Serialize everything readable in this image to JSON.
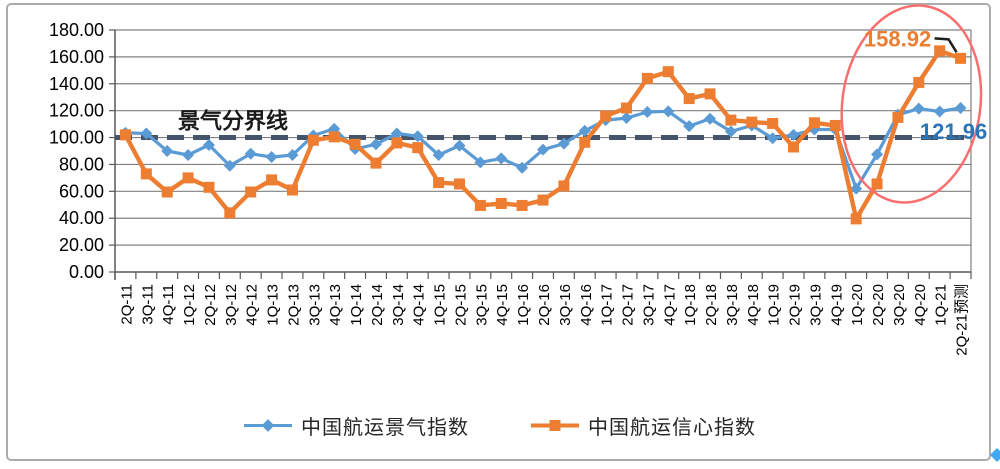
{
  "chart_data": {
    "type": "line",
    "title": "",
    "categories": [
      "2Q-11",
      "3Q-11",
      "4Q-11",
      "1Q-12",
      "2Q-12",
      "3Q-12",
      "4Q-12",
      "1Q-13",
      "2Q-13",
      "3Q-13",
      "4Q-13",
      "1Q-14",
      "2Q-14",
      "3Q-14",
      "4Q-14",
      "1Q-15",
      "2Q-15",
      "3Q-15",
      "4Q-15",
      "1Q-16",
      "2Q-16",
      "3Q-16",
      "4Q-16",
      "1Q-17",
      "2Q-17",
      "3Q-17",
      "4Q-17",
      "1Q-18",
      "2Q-18",
      "3Q-18",
      "4Q-18",
      "1Q-19",
      "2Q-19",
      "3Q-19",
      "4Q-19",
      "1Q-20",
      "2Q-20",
      "3Q-20",
      "4Q-20",
      "1Q-21",
      "2Q-21预测"
    ],
    "series": [
      {
        "name": "中国航运景气指数",
        "color": "#5B9BD5",
        "marker": "diamond",
        "values": [
          103.5,
          103,
          90,
          87,
          94.5,
          79,
          88,
          85.5,
          87,
          101.5,
          106.5,
          91.5,
          95,
          103,
          101,
          87,
          94,
          81.5,
          84.5,
          77.5,
          91,
          95.5,
          105,
          113,
          114.5,
          119,
          119.5,
          108.5,
          114,
          104.5,
          109,
          99.5,
          102,
          106,
          106,
          62,
          87.5,
          117,
          121.5,
          119.4,
          121.96
        ]
      },
      {
        "name": "中国航运信心指数",
        "color": "#ED7D31",
        "marker": "square",
        "values": [
          102,
          73,
          59.5,
          70,
          63,
          44,
          59.5,
          68.5,
          61,
          98,
          100.5,
          95,
          81,
          96,
          92.5,
          66.5,
          65.5,
          49.5,
          51,
          49.5,
          53.5,
          64,
          96.5,
          116,
          122,
          144,
          149,
          129,
          132.5,
          113,
          111.5,
          110.5,
          93,
          111,
          109,
          39.5,
          65.5,
          115,
          141,
          164.5,
          158.92
        ]
      }
    ],
    "ylim": [
      0,
      180
    ],
    "ytick_step": 20,
    "ytick_labels": [
      "0.00",
      "20.00",
      "40.00",
      "60.00",
      "80.00",
      "100.00",
      "120.00",
      "140.00",
      "160.00",
      "180.00"
    ],
    "grid": true,
    "grid_color": "#808080",
    "axis_color": "#595959",
    "legend_position": "bottom",
    "reference_line": {
      "label": "景气分界线",
      "value": 100,
      "color": "#44546A",
      "style": "dashed"
    },
    "annotations": [
      {
        "text": "158.92",
        "series": "中国航运信心指数",
        "category": "2Q-21预测",
        "value": 158.92,
        "color": "#ED7D31"
      },
      {
        "text": "121.96",
        "series": "中国航运景气指数",
        "category": "2Q-21预测",
        "value": 121.96,
        "color": "#2E75B6"
      }
    ],
    "highlight_ellipse": {
      "from_category": "1Q-20",
      "to_category": "2Q-21预测",
      "color": "#F96F6F"
    },
    "stray_marker_color": "#3FA9F5",
    "leader_line_color": "#1F1F1F"
  }
}
